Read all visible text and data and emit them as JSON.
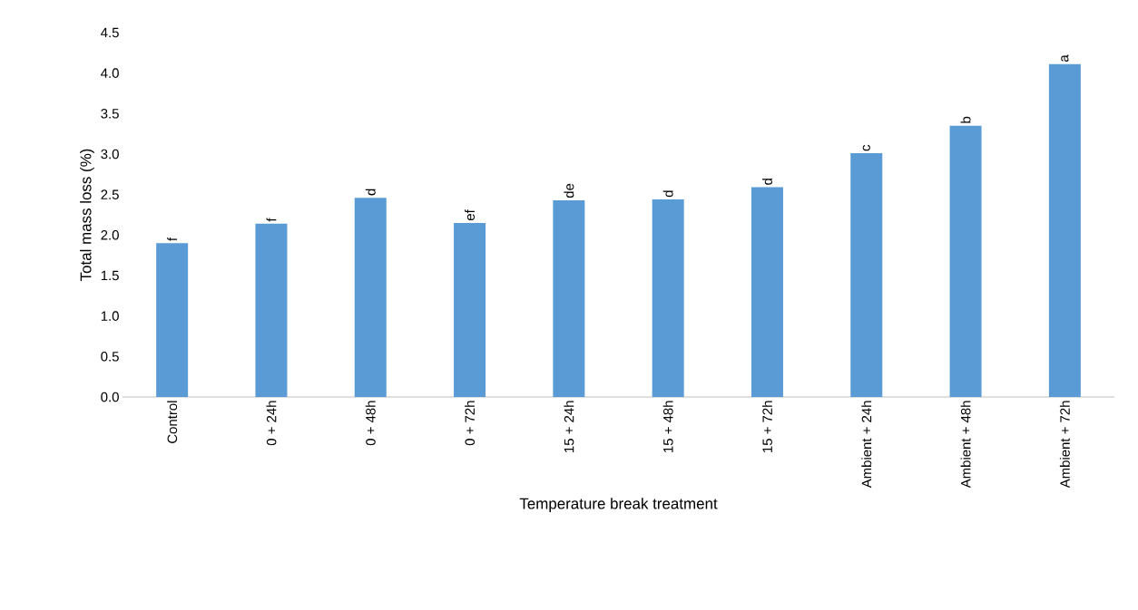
{
  "chart_data": {
    "type": "bar",
    "xlabel": "Temperature break treatment",
    "ylabel": "Total mass loss (%)",
    "categories": [
      "Control",
      "0 + 24h",
      "0 + 48h",
      "0 + 72h",
      "15 + 24h",
      "15 + 48h",
      "15 + 72h",
      "Ambient + 24h",
      "Ambient + 48h",
      "Ambient + 72h"
    ],
    "values": [
      1.9,
      2.14,
      2.46,
      2.15,
      2.43,
      2.44,
      2.59,
      3.01,
      3.35,
      4.11
    ],
    "color": "#5b9bd5",
    "ylim": [
      0,
      4.5
    ],
    "yticks": [
      {
        "value": 0,
        "label": "0.0"
      },
      0.5,
      {
        "value": 1,
        "label": "1.0"
      },
      1.5,
      {
        "value": 2,
        "label": "2.0"
      },
      2.5,
      {
        "value": 3,
        "label": "3.0"
      },
      3.5,
      {
        "value": 4,
        "label": "4.0"
      },
      4.5
    ],
    "annotations": [
      {
        "text": "f",
        "x": "Control",
        "y": 1.9
      },
      {
        "text": "f",
        "x": "0 + 24h",
        "y": 2.14
      },
      {
        "text": "d",
        "x": "0 + 48h",
        "y": 2.46
      },
      {
        "text": "ef",
        "x": "0 + 72h",
        "y": 2.15
      },
      {
        "text": "de",
        "x": "15 + 24h",
        "y": 2.43
      },
      {
        "text": "d",
        "x": "15 + 48h",
        "y": 2.44
      },
      {
        "text": "d",
        "x": "15 + 72h",
        "y": 2.59
      },
      {
        "text": "c",
        "x": "Ambient + 24h",
        "y": 3.01
      },
      {
        "text": "b",
        "x": "Ambient + 48h",
        "y": 3.35
      },
      {
        "text": "a",
        "x": "Ambient + 72h",
        "y": 4.11
      }
    ],
    "grid": false
  }
}
